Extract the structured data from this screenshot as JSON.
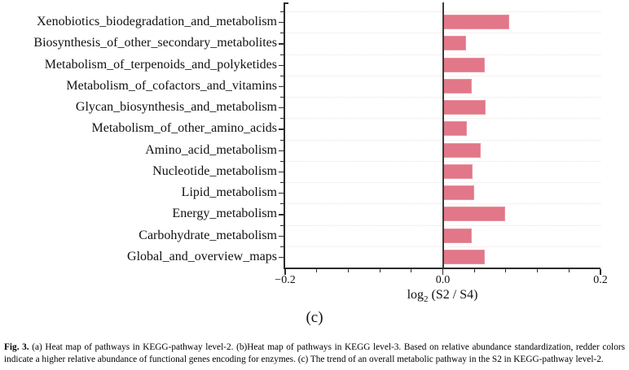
{
  "figure": {
    "panel_label": "(c)",
    "caption": {
      "prefix": "Fig. 3.",
      "text": " (a) Heat map of pathways in KEGG-pathway level-2. (b)Heat map of pathways in KEGG level-3. Based on relative abundance standardization, redder colors indicate a higher relative abundance of functional genes encoding for enzymes. (c) The trend of an overall metabolic pathway in the S2 in KEGG-pathway level-2."
    }
  },
  "chart_data": {
    "type": "bar",
    "orientation": "horizontal",
    "title": "",
    "categories": [
      "Xenobiotics_biodegradation_and_metabolism",
      "Biosynthesis_of_other_secondary_metabolites",
      "Metabolism_of_terpenoids_and_polyketides",
      "Metabolism_of_cofactors_and_vitamins",
      "Glycan_biosynthesis_and_metabolism",
      "Metabolism_of_other_amino_acids",
      "Amino_acid_metabolism",
      "Nucleotide_metabolism",
      "Lipid_metabolism",
      "Energy_metabolism",
      "Carbohydrate_metabolism",
      "Global_and_overview_maps"
    ],
    "values": [
      0.084,
      0.029,
      0.053,
      0.037,
      0.054,
      0.03,
      0.048,
      0.038,
      0.04,
      0.079,
      0.037,
      0.053
    ],
    "xlabel": {
      "base": "log",
      "sub": "2",
      "rest": " (S2 / S4)"
    },
    "ylabel": "",
    "xlim": [
      -0.2,
      0.2
    ],
    "x_major_ticks": [
      {
        "value": -0.2,
        "label": "−0.2"
      },
      {
        "value": 0.0,
        "label": "0.0"
      },
      {
        "value": 0.2,
        "label": "0.2"
      }
    ],
    "x_minor_step": 0.04,
    "grid": "horizontal-dotted-at-row-boundaries",
    "legend": "none",
    "zero_line": true,
    "bar_color": "#e17788",
    "bar_edge_color": "#e993a0",
    "axis_color": "#2b2b2b"
  }
}
